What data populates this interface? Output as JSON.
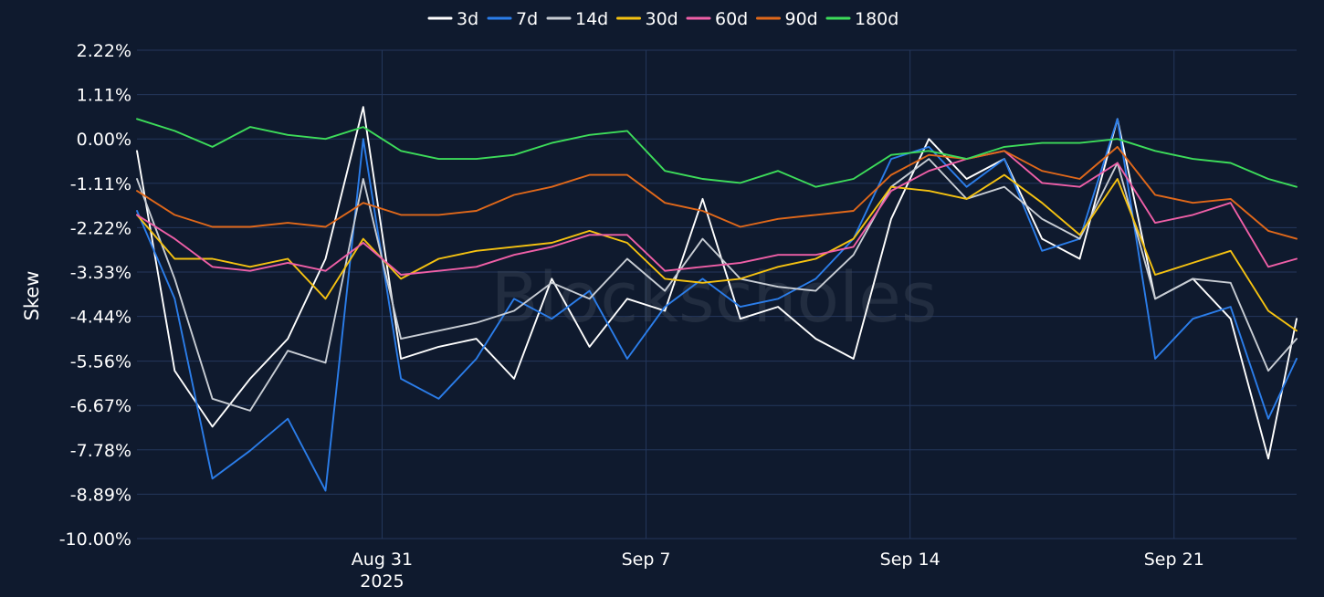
{
  "chart_data": {
    "type": "line",
    "ylabel": "Skew",
    "watermark": "Blockscholes",
    "y_ticks": [
      "2.22%",
      "1.11%",
      "0.00%",
      "-1.11%",
      "-2.22%",
      "-3.33%",
      "-4.44%",
      "-5.56%",
      "-6.67%",
      "-7.78%",
      "-8.89%",
      "-10.00%"
    ],
    "ylim": [
      -10.0,
      2.22
    ],
    "x_ticks": [
      {
        "date": "2025-08-31",
        "label": "Aug 31",
        "sublabel": "2025"
      },
      {
        "date": "2025-09-07",
        "label": "Sep 7",
        "sublabel": ""
      },
      {
        "date": "2025-09-14",
        "label": "Sep 14",
        "sublabel": ""
      },
      {
        "date": "2025-09-21",
        "label": "Sep 21",
        "sublabel": ""
      }
    ],
    "xlim": [
      "2025-08-24T12:00",
      "2025-09-24T06:00"
    ],
    "grid": true,
    "legend_position": "top",
    "colors": {
      "background": "#0f1a2e",
      "grid": "#24375c",
      "text": "#ffffff",
      "watermark": "#3a4556"
    },
    "x": [
      "2025-08-24T12:00",
      "2025-08-25T12:00",
      "2025-08-26T12:00",
      "2025-08-27T12:00",
      "2025-08-28T12:00",
      "2025-08-29T12:00",
      "2025-08-30T12:00",
      "2025-08-31T12:00",
      "2025-09-01T12:00",
      "2025-09-02T12:00",
      "2025-09-03T12:00",
      "2025-09-04T12:00",
      "2025-09-05T12:00",
      "2025-09-06T12:00",
      "2025-09-07T12:00",
      "2025-09-08T12:00",
      "2025-09-09T12:00",
      "2025-09-10T12:00",
      "2025-09-11T12:00",
      "2025-09-12T12:00",
      "2025-09-13T12:00",
      "2025-09-14T12:00",
      "2025-09-15T12:00",
      "2025-09-16T12:00",
      "2025-09-17T12:00",
      "2025-09-18T12:00",
      "2025-09-19T12:00",
      "2025-09-20T12:00",
      "2025-09-21T12:00",
      "2025-09-22T12:00",
      "2025-09-23T12:00",
      "2025-09-24T06:00"
    ],
    "series": [
      {
        "name": "3d",
        "color": "#ffffff",
        "values": [
          -0.3,
          -5.8,
          -7.2,
          -6.0,
          -5.0,
          -3.0,
          0.8,
          -5.5,
          -5.2,
          -5.0,
          -6.0,
          -3.5,
          -5.2,
          -4.0,
          -4.3,
          -1.5,
          -4.5,
          -4.2,
          -5.0,
          -5.5,
          -2.0,
          0.0,
          -1.0,
          -0.5,
          -2.5,
          -3.0,
          0.5,
          -4.0,
          -3.5,
          -4.5,
          -8.0,
          -4.5
        ]
      },
      {
        "name": "7d",
        "color": "#2b7de9",
        "values": [
          -1.8,
          -4.0,
          -8.5,
          -7.8,
          -7.0,
          -8.8,
          0.0,
          -6.0,
          -6.5,
          -5.5,
          -4.0,
          -4.5,
          -3.8,
          -5.5,
          -4.2,
          -3.5,
          -4.2,
          -4.0,
          -3.5,
          -2.5,
          -0.5,
          -0.2,
          -1.2,
          -0.5,
          -2.8,
          -2.5,
          0.5,
          -5.5,
          -4.5,
          -4.2,
          -7.0,
          -5.5
        ]
      },
      {
        "name": "14d",
        "color": "#c8cdd4",
        "values": [
          -1.0,
          -3.5,
          -6.5,
          -6.8,
          -5.3,
          -5.6,
          -1.0,
          -5.0,
          -4.8,
          -4.6,
          -4.3,
          -3.6,
          -4.0,
          -3.0,
          -3.8,
          -2.5,
          -3.5,
          -3.7,
          -3.8,
          -2.9,
          -1.2,
          -0.5,
          -1.5,
          -1.2,
          -2.0,
          -2.5,
          -0.6,
          -4.0,
          -3.5,
          -3.6,
          -5.8,
          -5.0
        ]
      },
      {
        "name": "30d",
        "color": "#f5c211",
        "values": [
          -1.9,
          -3.0,
          -3.0,
          -3.2,
          -3.0,
          -4.0,
          -2.5,
          -3.5,
          -3.0,
          -2.8,
          -2.7,
          -2.6,
          -2.3,
          -2.6,
          -3.5,
          -3.6,
          -3.5,
          -3.2,
          -3.0,
          -2.5,
          -1.2,
          -1.3,
          -1.5,
          -0.9,
          -1.6,
          -2.4,
          -1.0,
          -3.4,
          -3.1,
          -2.8,
          -4.3,
          -4.8
        ]
      },
      {
        "name": "60d",
        "color": "#ef5fa7",
        "values": [
          -1.9,
          -2.5,
          -3.2,
          -3.3,
          -3.1,
          -3.3,
          -2.6,
          -3.4,
          -3.3,
          -3.2,
          -2.9,
          -2.7,
          -2.4,
          -2.4,
          -3.3,
          -3.2,
          -3.1,
          -2.9,
          -2.9,
          -2.7,
          -1.3,
          -0.8,
          -0.5,
          -0.3,
          -1.1,
          -1.2,
          -0.6,
          -2.1,
          -1.9,
          -1.6,
          -3.2,
          -3.0
        ]
      },
      {
        "name": "90d",
        "color": "#e0681a",
        "values": [
          -1.3,
          -1.9,
          -2.2,
          -2.2,
          -2.1,
          -2.2,
          -1.6,
          -1.9,
          -1.9,
          -1.8,
          -1.4,
          -1.2,
          -0.9,
          -0.9,
          -1.6,
          -1.8,
          -2.2,
          -2.0,
          -1.9,
          -1.8,
          -0.9,
          -0.4,
          -0.5,
          -0.3,
          -0.8,
          -1.0,
          -0.2,
          -1.4,
          -1.6,
          -1.5,
          -2.3,
          -2.5
        ]
      },
      {
        "name": "180d",
        "color": "#3ddc5a",
        "values": [
          0.5,
          0.2,
          -0.2,
          0.3,
          0.1,
          0.0,
          0.3,
          -0.3,
          -0.5,
          -0.5,
          -0.4,
          -0.1,
          0.1,
          0.2,
          -0.8,
          -1.0,
          -1.1,
          -0.8,
          -1.2,
          -1.0,
          -0.4,
          -0.3,
          -0.5,
          -0.2,
          -0.1,
          -0.1,
          0.0,
          -0.3,
          -0.5,
          -0.6,
          -1.0,
          -1.2
        ]
      }
    ]
  }
}
